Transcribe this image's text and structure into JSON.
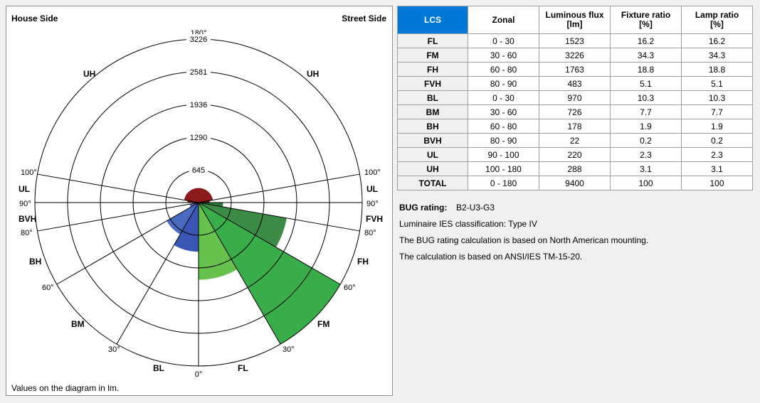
{
  "diagram": {
    "house_side": "House Side",
    "street_side": "Street Side",
    "footnote": "Values on the diagram in lm.",
    "ring_labels": [
      "645",
      "1290",
      "1936",
      "2581",
      "3226"
    ],
    "angle_labels": {
      "top": "180°",
      "bottom": "0°",
      "left_100": "100°",
      "left_90": "90°",
      "left_80": "80°",
      "left_60": "60°",
      "left_30": "30°",
      "right_100": "100°",
      "right_90": "90°",
      "right_80": "80°",
      "right_60": "60°",
      "right_30": "30°"
    },
    "zone_labels": {
      "uh_left": "UH",
      "uh_right": "UH",
      "ul_left": "UL",
      "ul_right": "UL",
      "bvh": "BVH",
      "fvh": "FVH",
      "bh": "BH",
      "fh": "FH",
      "bm": "BM",
      "fm": "FM",
      "bl": "BL",
      "fl": "FL"
    }
  },
  "chart_data": {
    "type": "polar-bar",
    "scale_max": 3226,
    "rings": [
      645,
      1290,
      1936,
      2581,
      3226
    ],
    "sectors": [
      {
        "zone": "FL",
        "from_deg": 0,
        "to_deg": 30,
        "side": "street",
        "value": 1523
      },
      {
        "zone": "FM",
        "from_deg": 30,
        "to_deg": 60,
        "side": "street",
        "value": 3226
      },
      {
        "zone": "FH",
        "from_deg": 60,
        "to_deg": 80,
        "side": "street",
        "value": 1763
      },
      {
        "zone": "FVH",
        "from_deg": 80,
        "to_deg": 90,
        "side": "street",
        "value": 483
      },
      {
        "zone": "BL",
        "from_deg": 0,
        "to_deg": 30,
        "side": "house",
        "value": 970
      },
      {
        "zone": "BM",
        "from_deg": 30,
        "to_deg": 60,
        "side": "house",
        "value": 726
      },
      {
        "zone": "BH",
        "from_deg": 60,
        "to_deg": 80,
        "side": "house",
        "value": 178
      },
      {
        "zone": "BVH",
        "from_deg": 80,
        "to_deg": 90,
        "side": "house",
        "value": 22
      },
      {
        "zone": "UL",
        "from_deg": 90,
        "to_deg": 100,
        "side": "both",
        "value": 220
      },
      {
        "zone": "UH",
        "from_deg": 100,
        "to_deg": 180,
        "side": "both",
        "value": 288
      }
    ],
    "colors": {
      "FL": "#66c24c",
      "FM": "#38ad49",
      "FH": "#3b8a45",
      "FVH": "#2e7a3a",
      "BL": "#3a56b4",
      "BM": "#4a6ac2",
      "BH": "#4d63b8",
      "BVH": "#4d63b8",
      "UL": "#7a1414",
      "UH": "#8b1a1a"
    }
  },
  "table": {
    "headers": [
      "LCS",
      "Zonal",
      "Luminous flux\n[lm]",
      "Fixture ratio\n[%]",
      "Lamp ratio\n[%]"
    ],
    "rows": [
      {
        "name": "FL",
        "zonal": "0 - 30",
        "flux": "1523",
        "fixture": "16.2",
        "lamp": "16.2"
      },
      {
        "name": "FM",
        "zonal": "30 - 60",
        "flux": "3226",
        "fixture": "34.3",
        "lamp": "34.3"
      },
      {
        "name": "FH",
        "zonal": "60 - 80",
        "flux": "1763",
        "fixture": "18.8",
        "lamp": "18.8"
      },
      {
        "name": "FVH",
        "zonal": "80 - 90",
        "flux": "483",
        "fixture": "5.1",
        "lamp": "5.1"
      },
      {
        "name": "BL",
        "zonal": "0 - 30",
        "flux": "970",
        "fixture": "10.3",
        "lamp": "10.3"
      },
      {
        "name": "BM",
        "zonal": "30 - 60",
        "flux": "726",
        "fixture": "7.7",
        "lamp": "7.7"
      },
      {
        "name": "BH",
        "zonal": "60 - 80",
        "flux": "178",
        "fixture": "1.9",
        "lamp": "1.9"
      },
      {
        "name": "BVH",
        "zonal": "80 - 90",
        "flux": "22",
        "fixture": "0.2",
        "lamp": "0.2"
      },
      {
        "name": "UL",
        "zonal": "90 - 100",
        "flux": "220",
        "fixture": "2.3",
        "lamp": "2.3"
      },
      {
        "name": "UH",
        "zonal": "100 - 180",
        "flux": "288",
        "fixture": "3.1",
        "lamp": "3.1"
      },
      {
        "name": "TOTAL",
        "zonal": "0 - 180",
        "flux": "9400",
        "fixture": "100",
        "lamp": "100"
      }
    ]
  },
  "info": {
    "bug_label": "BUG rating:",
    "bug_value": "B2-U3-G3",
    "ies_class": "Luminaire IES classification: Type IV",
    "note1": "The BUG rating calculation is based on North American mounting.",
    "note2": "The calculation is based on ANSI/IES TM-15-20."
  }
}
